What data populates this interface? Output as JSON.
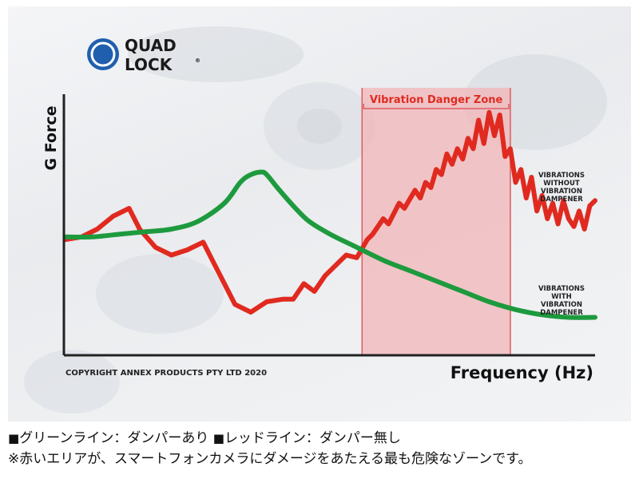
{
  "logo": {
    "line1": "QUAD",
    "line2": "LOCK",
    "mark": "®",
    "icon": "quad-lock-circle-icon",
    "color": "#1f5fae"
  },
  "chart_data": {
    "type": "line",
    "title": "",
    "xlabel": "Frequency (Hz)",
    "ylabel": "G Force",
    "xlim": [
      0,
      100
    ],
    "ylim": [
      0,
      100
    ],
    "grid": false,
    "danger_zone": {
      "label": "Vibration Danger Zone",
      "x_start": 56,
      "x_end": 84,
      "color": "#f2b6b8",
      "border": "#e05a60"
    },
    "series": [
      {
        "name": "VIBRATIONS WITHOUT VIBRATION DAMPENER",
        "color": "#e02a20",
        "x": [
          0,
          3,
          6,
          9,
          12,
          14,
          17,
          20,
          23,
          26,
          28,
          30,
          32,
          35,
          38,
          41,
          43,
          45,
          47,
          49,
          51,
          53,
          55,
          57,
          58,
          60,
          61,
          63,
          64,
          66,
          67,
          68,
          69,
          70,
          71,
          72,
          73,
          74,
          75,
          76,
          77,
          78,
          79,
          80,
          81,
          82,
          83,
          84,
          85,
          86,
          87,
          88,
          89,
          90,
          91,
          92,
          93,
          94,
          95,
          96,
          97,
          98,
          99,
          100
        ],
        "y": [
          44,
          45,
          48,
          53,
          56,
          48,
          41,
          38,
          40,
          43,
          35,
          27,
          19,
          16,
          20,
          21,
          21,
          27,
          24,
          30,
          34,
          38,
          37,
          44,
          46,
          52,
          50,
          58,
          56,
          63,
          60,
          66,
          64,
          71,
          69,
          77,
          73,
          79,
          75,
          83,
          79,
          90,
          81,
          93,
          84,
          92,
          76,
          79,
          66,
          71,
          60,
          68,
          55,
          61,
          52,
          58,
          50,
          59,
          52,
          49,
          55,
          48,
          57,
          59
        ]
      },
      {
        "name": "VIBRATIONS WITH VIBRATION DAMPENER",
        "color": "#1e9a3e",
        "x": [
          0,
          5,
          10,
          15,
          20,
          25,
          30,
          33,
          35,
          37,
          38,
          40,
          43,
          46,
          50,
          55,
          60,
          65,
          70,
          75,
          80,
          85,
          90,
          95,
          100
        ],
        "y": [
          45,
          45,
          46,
          47,
          48,
          51,
          58,
          66,
          69,
          70,
          69,
          64,
          57,
          51,
          46,
          41,
          36,
          32,
          28,
          24,
          20,
          17,
          15,
          14,
          14
        ]
      }
    ],
    "annotations": {
      "red_label": [
        "VIBRATIONS",
        "WITHOUT",
        "VIBRATION",
        "DAMPENER"
      ],
      "green_label": [
        "VIBRATIONS",
        "WITH",
        "VIBRATION",
        "DAMPENER"
      ],
      "copyright": "COPYRIGHT ANNEX PRODUCTS PTY LTD 2020"
    }
  },
  "caption": {
    "line1_marker": "■",
    "line1_part1": "グリーンライン：ダンパーあり",
    "line1_marker2": "■",
    "line1_part2": "レッドライン：ダンパー無し",
    "line2": "※赤いエリアが、スマートフォンカメラにダメージをあたえる最も危険なゾーンです。"
  }
}
